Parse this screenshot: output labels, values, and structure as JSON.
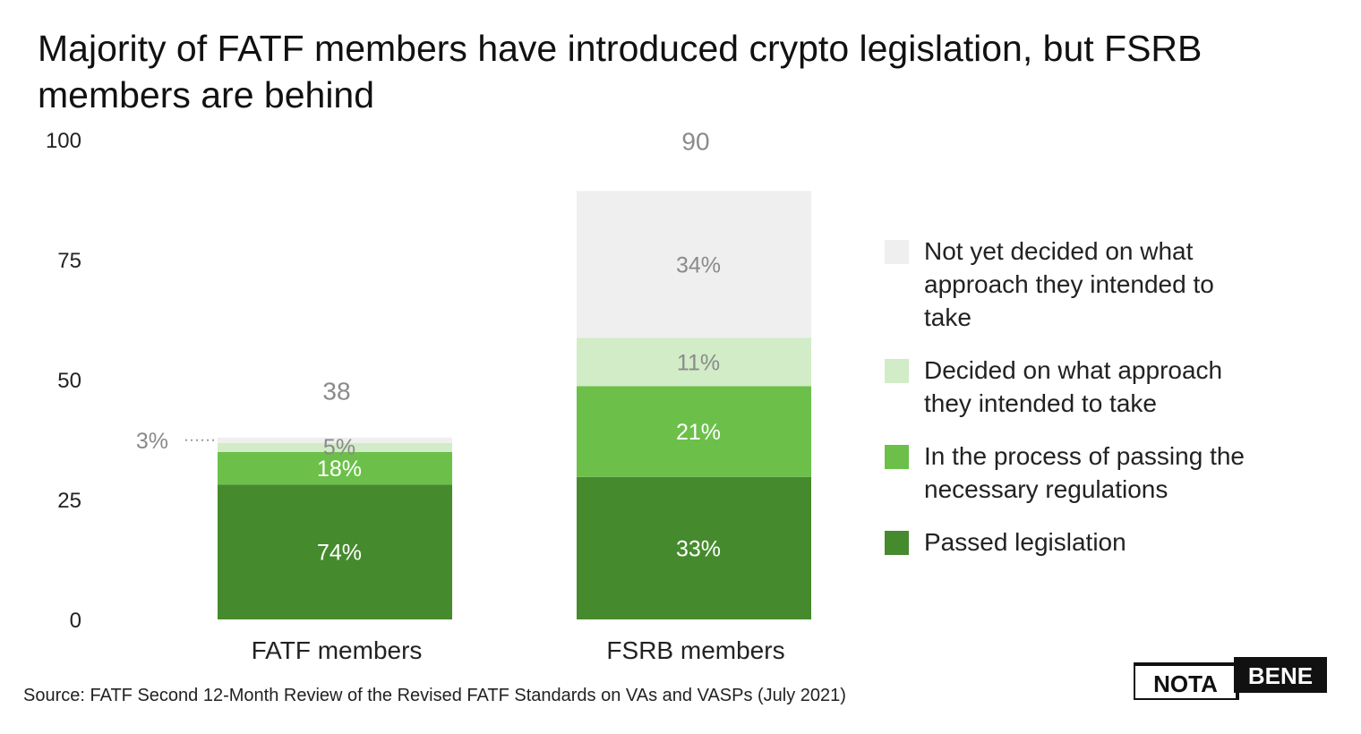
{
  "title": "Majority of FATF members have introduced crypto legislation, but FSRB members are behind",
  "source": "Source: FATF Second 12-Month Review of the Revised FATF Standards on VAs and VASPs (July 2021)",
  "logo": {
    "left_word": "NOTA",
    "right_word": "BENE"
  },
  "colors": {
    "passed": "#468a2e",
    "in_process": "#6cc04a",
    "decided": "#d1ecc7",
    "not_decided": "#efefef",
    "axis_text": "#222222",
    "label_gray": "#8a8a8a"
  },
  "chart_data": {
    "type": "bar",
    "stacked": true,
    "title": "Majority of FATF members have introduced crypto legislation, but FSRB members are behind",
    "xlabel": "",
    "ylabel": "",
    "ylim": [
      0,
      100
    ],
    "yticks": [
      "0",
      "25",
      "50",
      "75",
      "100"
    ],
    "grid": false,
    "legend_position": "right",
    "categories": [
      "FATF members",
      "FSRB members"
    ],
    "totals": [
      38,
      90
    ],
    "total_labels": [
      "38",
      "90"
    ],
    "series": [
      {
        "key": "passed",
        "name": "Passed legislation",
        "values": [
          28.1,
          29.7
        ],
        "labels": [
          "74%",
          "33%"
        ]
      },
      {
        "key": "in_process",
        "name": "In the process of passing the necessary regulations",
        "values": [
          6.8,
          18.9
        ],
        "labels": [
          "18%",
          "21%"
        ]
      },
      {
        "key": "decided",
        "name": "Decided on what approach they intended to take",
        "values": [
          1.9,
          10.1
        ],
        "labels": [
          "5%",
          "11%"
        ]
      },
      {
        "key": "not_decided",
        "name": "Not yet decided on what approach they intended to take",
        "values": [
          1.1,
          30.6
        ],
        "labels": [
          "3%",
          "34%"
        ]
      }
    ],
    "callout": {
      "category": 0,
      "series": 3,
      "label": "3%"
    },
    "legend_order": [
      "not_decided",
      "decided",
      "in_process",
      "passed"
    ]
  }
}
